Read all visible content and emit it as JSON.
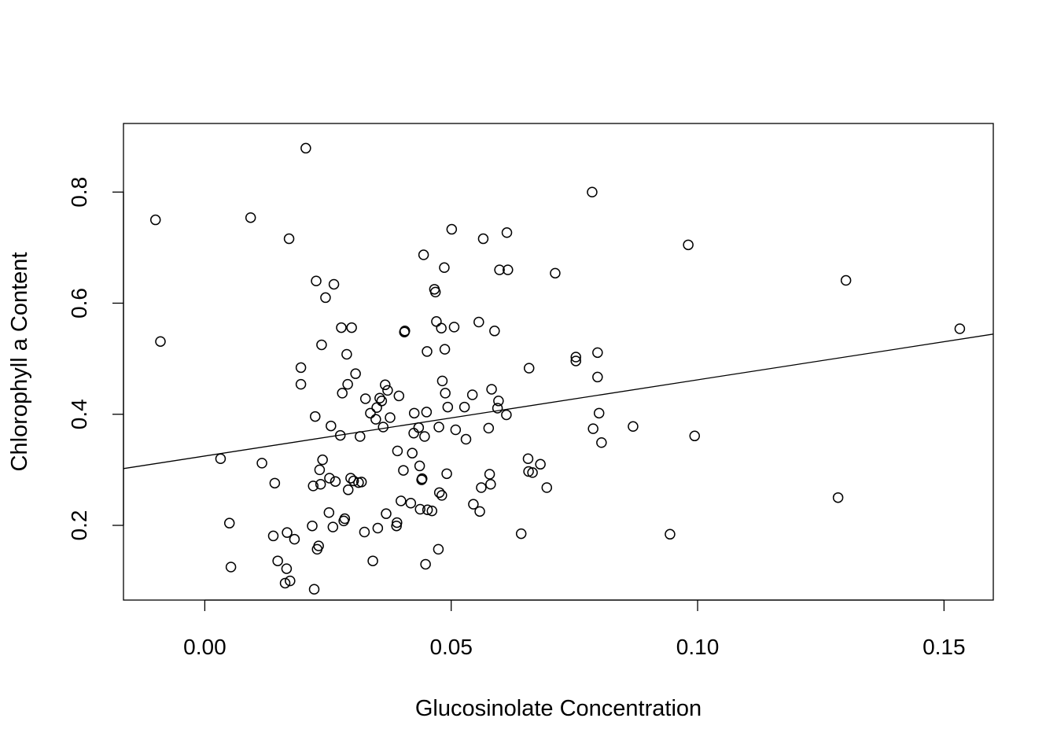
{
  "chart_data": {
    "type": "scatter",
    "title": "",
    "xlabel": "Glucosinolate Concentration",
    "ylabel": "Chlorophyll a Content",
    "xlim": [
      -0.0165,
      0.16
    ],
    "ylim": [
      0.0655,
      0.9235
    ],
    "x_ticks": [
      0.0,
      0.05,
      0.1,
      0.15
    ],
    "x_tick_labels": [
      "0.00",
      "0.05",
      "0.10",
      "0.15"
    ],
    "y_ticks": [
      0.2,
      0.4,
      0.6,
      0.8
    ],
    "y_tick_labels": [
      "0.2",
      "0.4",
      "0.6",
      "0.8"
    ],
    "grid": false,
    "legend": "none",
    "marker": "open-circle",
    "regression_line": {
      "x": [
        -0.0165,
        0.16
      ],
      "y": [
        0.3022,
        0.5443
      ]
    },
    "points": [
      [
        -0.01,
        0.75
      ],
      [
        -0.009,
        0.531
      ],
      [
        0.0032,
        0.32
      ],
      [
        0.005,
        0.204
      ],
      [
        0.0053,
        0.125
      ],
      [
        0.0093,
        0.754
      ],
      [
        0.0116,
        0.312
      ],
      [
        0.0139,
        0.181
      ],
      [
        0.0142,
        0.276
      ],
      [
        0.0148,
        0.136
      ],
      [
        0.0163,
        0.096
      ],
      [
        0.0166,
        0.122
      ],
      [
        0.0167,
        0.187
      ],
      [
        0.0171,
        0.716
      ],
      [
        0.0173,
        0.1
      ],
      [
        0.0182,
        0.175
      ],
      [
        0.0195,
        0.484
      ],
      [
        0.0195,
        0.454
      ],
      [
        0.0205,
        0.879
      ],
      [
        0.0218,
        0.199
      ],
      [
        0.022,
        0.271
      ],
      [
        0.0222,
        0.085
      ],
      [
        0.0224,
        0.396
      ],
      [
        0.0226,
        0.64
      ],
      [
        0.0228,
        0.157
      ],
      [
        0.0231,
        0.163
      ],
      [
        0.0233,
        0.3
      ],
      [
        0.0235,
        0.274
      ],
      [
        0.0237,
        0.525
      ],
      [
        0.0239,
        0.318
      ],
      [
        0.0245,
        0.61
      ],
      [
        0.0252,
        0.223
      ],
      [
        0.0253,
        0.285
      ],
      [
        0.0256,
        0.379
      ],
      [
        0.026,
        0.197
      ],
      [
        0.0262,
        0.634
      ],
      [
        0.0265,
        0.279
      ],
      [
        0.0275,
        0.362
      ],
      [
        0.0277,
        0.556
      ],
      [
        0.0279,
        0.438
      ],
      [
        0.0282,
        0.208
      ],
      [
        0.0284,
        0.212
      ],
      [
        0.0288,
        0.508
      ],
      [
        0.029,
        0.454
      ],
      [
        0.0291,
        0.264
      ],
      [
        0.0296,
        0.285
      ],
      [
        0.0298,
        0.556
      ],
      [
        0.0302,
        0.28
      ],
      [
        0.0306,
        0.473
      ],
      [
        0.0312,
        0.277
      ],
      [
        0.0315,
        0.36
      ],
      [
        0.0318,
        0.278
      ],
      [
        0.0324,
        0.188
      ],
      [
        0.0326,
        0.428
      ],
      [
        0.0336,
        0.402
      ],
      [
        0.0341,
        0.136
      ],
      [
        0.0347,
        0.391
      ],
      [
        0.0349,
        0.412
      ],
      [
        0.0351,
        0.195
      ],
      [
        0.0355,
        0.429
      ],
      [
        0.0359,
        0.424
      ],
      [
        0.0362,
        0.377
      ],
      [
        0.0366,
        0.453
      ],
      [
        0.0368,
        0.221
      ],
      [
        0.0371,
        0.443
      ],
      [
        0.0376,
        0.394
      ],
      [
        0.0389,
        0.199
      ],
      [
        0.039,
        0.205
      ],
      [
        0.0391,
        0.334
      ],
      [
        0.0394,
        0.433
      ],
      [
        0.0398,
        0.244
      ],
      [
        0.0403,
        0.299
      ],
      [
        0.0405,
        0.548
      ],
      [
        0.0406,
        0.55
      ],
      [
        0.0418,
        0.24
      ],
      [
        0.0421,
        0.33
      ],
      [
        0.0424,
        0.366
      ],
      [
        0.0425,
        0.402
      ],
      [
        0.0434,
        0.376
      ],
      [
        0.0436,
        0.307
      ],
      [
        0.0437,
        0.229
      ],
      [
        0.044,
        0.282
      ],
      [
        0.0441,
        0.284
      ],
      [
        0.0444,
        0.687
      ],
      [
        0.0446,
        0.36
      ],
      [
        0.0448,
        0.13
      ],
      [
        0.045,
        0.404
      ],
      [
        0.0451,
        0.513
      ],
      [
        0.0452,
        0.228
      ],
      [
        0.0461,
        0.226
      ],
      [
        0.0466,
        0.625
      ],
      [
        0.0468,
        0.62
      ],
      [
        0.047,
        0.567
      ],
      [
        0.0474,
        0.157
      ],
      [
        0.0475,
        0.377
      ],
      [
        0.0476,
        0.259
      ],
      [
        0.048,
        0.555
      ],
      [
        0.0481,
        0.254
      ],
      [
        0.0482,
        0.46
      ],
      [
        0.0486,
        0.664
      ],
      [
        0.0487,
        0.517
      ],
      [
        0.0488,
        0.438
      ],
      [
        0.0491,
        0.293
      ],
      [
        0.0493,
        0.413
      ],
      [
        0.0501,
        0.733
      ],
      [
        0.0506,
        0.557
      ],
      [
        0.0509,
        0.372
      ],
      [
        0.0527,
        0.413
      ],
      [
        0.053,
        0.355
      ],
      [
        0.0543,
        0.435
      ],
      [
        0.0545,
        0.238
      ],
      [
        0.0556,
        0.566
      ],
      [
        0.0558,
        0.225
      ],
      [
        0.0561,
        0.268
      ],
      [
        0.0565,
        0.716
      ],
      [
        0.0576,
        0.375
      ],
      [
        0.0578,
        0.292
      ],
      [
        0.058,
        0.274
      ],
      [
        0.0582,
        0.445
      ],
      [
        0.0588,
        0.55
      ],
      [
        0.0594,
        0.411
      ],
      [
        0.0596,
        0.424
      ],
      [
        0.0598,
        0.66
      ],
      [
        0.0612,
        0.399
      ],
      [
        0.0613,
        0.727
      ],
      [
        0.0615,
        0.66
      ],
      [
        0.0642,
        0.185
      ],
      [
        0.0656,
        0.32
      ],
      [
        0.0657,
        0.297
      ],
      [
        0.0658,
        0.483
      ],
      [
        0.0665,
        0.295
      ],
      [
        0.0681,
        0.31
      ],
      [
        0.0694,
        0.268
      ],
      [
        0.0711,
        0.654
      ],
      [
        0.0753,
        0.496
      ],
      [
        0.0753,
        0.503
      ],
      [
        0.0786,
        0.8
      ],
      [
        0.0788,
        0.374
      ],
      [
        0.0797,
        0.511
      ],
      [
        0.0797,
        0.467
      ],
      [
        0.08,
        0.402
      ],
      [
        0.0805,
        0.349
      ],
      [
        0.0869,
        0.378
      ],
      [
        0.0944,
        0.184
      ],
      [
        0.0981,
        0.705
      ],
      [
        0.0994,
        0.361
      ],
      [
        0.1285,
        0.25
      ],
      [
        0.1301,
        0.641
      ],
      [
        0.1532,
        0.554
      ]
    ]
  }
}
